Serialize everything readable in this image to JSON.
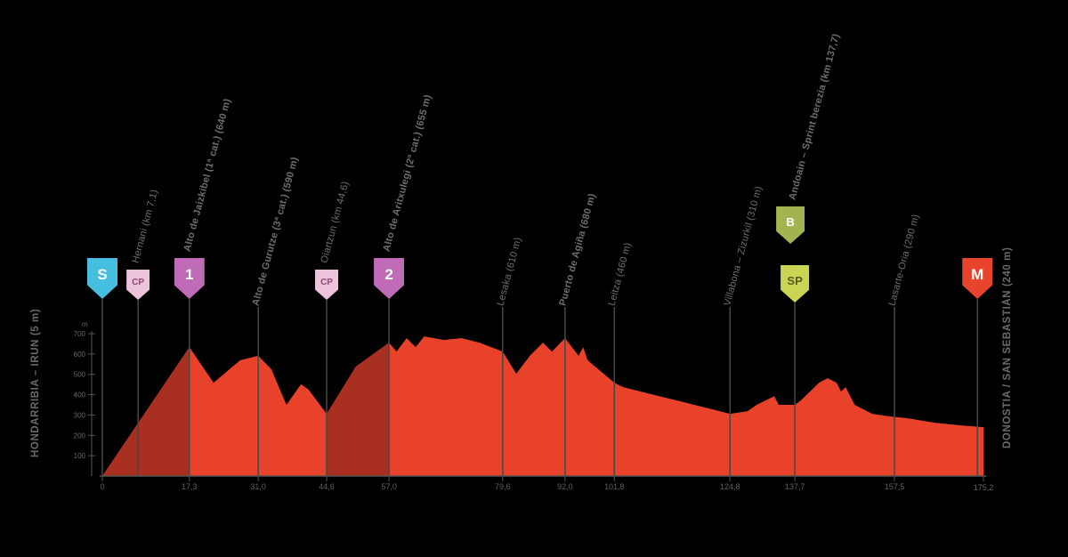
{
  "colors": {
    "background": "#000000",
    "profile_fill": "#E9422B",
    "profile_shade": "#A93020",
    "marker_line": "#474747",
    "baseline": "#555555",
    "tick_text": "#666666",
    "label_text": "#6e6e6e",
    "badge_start_bg": "#45BEDF",
    "badge_cp_bg": "#EEC3DC",
    "badge_climb_bg": "#C06BB8",
    "badge_bonus_bg": "#A2B44F",
    "badge_sprint_bg": "#CBD555",
    "badge_finish_bg": "#E8432C"
  },
  "axis": {
    "left_title": "HONDARRIBIA – IRUN (5 m)",
    "right_title": "DONOSTIA / SAN SEBASTIÁN (240 m)",
    "unit": "m",
    "elev_ticks": [
      700,
      600,
      500,
      400,
      300,
      200,
      100
    ],
    "end_km_label": "175,2"
  },
  "markers": [
    {
      "id": "start",
      "km": 0,
      "badge": {
        "text": "S",
        "style": "big",
        "bg": "#45BEDF",
        "fg": "#ffffff"
      },
      "label": "",
      "bottom": "0"
    },
    {
      "id": "cp1",
      "km": 7.1,
      "badge": {
        "text": "CP",
        "style": "small",
        "bg": "#EEC3DC",
        "fg": "#8a4a74"
      },
      "label": "Hernani (km 7,1)",
      "bottom": ""
    },
    {
      "id": "climb1",
      "km": 17.3,
      "badge": {
        "text": "1",
        "style": "big",
        "bg": "#C06BB8",
        "fg": "#ffffff"
      },
      "label": "Alto de Jaizkibel (1ª cat.) (640 m)",
      "bold": true,
      "bottom": "17,3"
    },
    {
      "id": "summit1",
      "km": 31.0,
      "label": "Alto de Gurutze (3ª cat.) (590 m)",
      "bold": true,
      "bottom": "31,0"
    },
    {
      "id": "cp2",
      "km": 44.6,
      "badge": {
        "text": "CP",
        "style": "small",
        "bg": "#EEC3DC",
        "fg": "#8a4a74"
      },
      "label": "Oiartzun (km 44,6)",
      "bottom": "44,6"
    },
    {
      "id": "climb2",
      "km": 57.0,
      "badge": {
        "text": "2",
        "style": "big",
        "bg": "#C06BB8",
        "fg": "#ffffff"
      },
      "label": "Alto de Aritxulegi (2ª cat.) (655 m)",
      "bold": true,
      "bottom": "57,0"
    },
    {
      "id": "town1",
      "km": 79.6,
      "label": "Lesaka (610 m)",
      "bottom": "79,6"
    },
    {
      "id": "town2",
      "km": 92.0,
      "label": "Puerto de Agiña (680 m)",
      "bold": true,
      "bottom": "92,0"
    },
    {
      "id": "town3",
      "km": 101.8,
      "label": "Leitza (460 m)",
      "bottom": "101,8"
    },
    {
      "id": "town4",
      "km": 124.8,
      "label": "Villabona – Zizurkil (310 m)",
      "bottom": "124,8"
    },
    {
      "id": "sprint",
      "km": 137.7,
      "badge": {
        "text": "SP",
        "style": "mid",
        "bg": "#CBD555",
        "fg": "#5a5a1e"
      },
      "badge2": {
        "text": "B",
        "style": "mid",
        "bg": "#A2B44F",
        "fg": "#ffffff"
      },
      "label": "Andoain – Sprint berezia (km 137,7)",
      "bold": true,
      "bottom": "137,7"
    },
    {
      "id": "town5",
      "km": 157.5,
      "label": "Lasarte-Oria (290 m)",
      "bottom": "157,5"
    },
    {
      "id": "finish",
      "km": 174.0,
      "badge": {
        "text": "M",
        "style": "big",
        "bg": "#E8432C",
        "fg": "#ffffff"
      },
      "label": "",
      "bottom": ""
    }
  ],
  "chart_data": {
    "type": "area",
    "xlabel": "km",
    "ylabel": "m",
    "total_km": 175.2,
    "xlim": [
      0,
      175.2
    ],
    "ylim": [
      0,
      700
    ],
    "grid": false,
    "legend": false,
    "points": [
      [
        0,
        0
      ],
      [
        17.3,
        634
      ],
      [
        22.1,
        459
      ],
      [
        27.4,
        569
      ],
      [
        31,
        591
      ],
      [
        33.6,
        525
      ],
      [
        36.6,
        350
      ],
      [
        39.5,
        451
      ],
      [
        41,
        425
      ],
      [
        44.6,
        306
      ],
      [
        50.4,
        538
      ],
      [
        57,
        656
      ],
      [
        58.5,
        612
      ],
      [
        60.5,
        678
      ],
      [
        62.3,
        634
      ],
      [
        64,
        687
      ],
      [
        67.9,
        669
      ],
      [
        71.4,
        678
      ],
      [
        75,
        656
      ],
      [
        79.6,
        612
      ],
      [
        82.3,
        503
      ],
      [
        85,
        591
      ],
      [
        87.6,
        656
      ],
      [
        89.4,
        612
      ],
      [
        92,
        678
      ],
      [
        94.7,
        591
      ],
      [
        95.6,
        634
      ],
      [
        96.5,
        569
      ],
      [
        101.8,
        459
      ],
      [
        103.6,
        437
      ],
      [
        107.1,
        415
      ],
      [
        110.7,
        393
      ],
      [
        114.2,
        372
      ],
      [
        117.7,
        350
      ],
      [
        121.3,
        328
      ],
      [
        124.8,
        306
      ],
      [
        128.3,
        319
      ],
      [
        130.1,
        350
      ],
      [
        131.9,
        372
      ],
      [
        133.6,
        393
      ],
      [
        134.5,
        350
      ],
      [
        137.7,
        350
      ],
      [
        138.9,
        372
      ],
      [
        140.7,
        415
      ],
      [
        142.5,
        459
      ],
      [
        144.2,
        481
      ],
      [
        146,
        459
      ],
      [
        146.9,
        415
      ],
      [
        147.8,
        437
      ],
      [
        149.6,
        350
      ],
      [
        153.1,
        306
      ],
      [
        156.6,
        293
      ],
      [
        160.2,
        284
      ],
      [
        165.5,
        262
      ],
      [
        170.8,
        249
      ],
      [
        175.2,
        240
      ]
    ],
    "shaded_km_ranges": [
      [
        0,
        17.3
      ],
      [
        44.6,
        57.0
      ]
    ]
  }
}
